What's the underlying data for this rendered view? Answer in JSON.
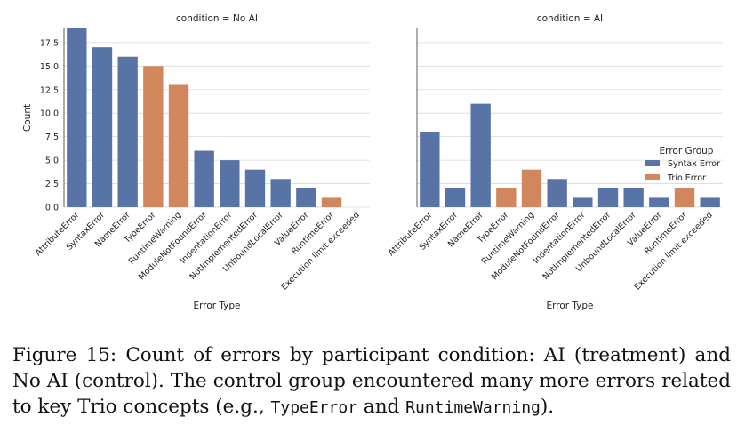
{
  "chart_data": [
    {
      "type": "bar",
      "title": "condition = No AI",
      "xlabel": "Error Type",
      "ylabel": "Count",
      "ylim": [
        0,
        19
      ],
      "yticks": [
        "0.0",
        "2.5",
        "5.0",
        "7.5",
        "10.0",
        "12.5",
        "15.0",
        "17.5"
      ],
      "categories": [
        "AttributeError",
        "SyntaxError",
        "NameError",
        "TypeError",
        "RuntimeWarning",
        "ModuleNotFoundError",
        "IndentationError",
        "NotImplementedError",
        "UnboundLocalError",
        "ValueError",
        "RuntimeError",
        "Execution limit exceeded"
      ],
      "values": [
        19,
        17,
        16,
        15,
        13,
        6,
        5,
        4,
        3,
        2,
        1,
        0
      ],
      "groups": [
        "Syntax Error",
        "Syntax Error",
        "Syntax Error",
        "Trio Error",
        "Trio Error",
        "Syntax Error",
        "Syntax Error",
        "Syntax Error",
        "Syntax Error",
        "Syntax Error",
        "Trio Error",
        "Syntax Error"
      ]
    },
    {
      "type": "bar",
      "title": "condition = AI",
      "xlabel": "Error Type",
      "ylabel": "",
      "ylim": [
        0,
        19
      ],
      "categories": [
        "AttributeError",
        "SyntaxError",
        "NameError",
        "TypeError",
        "RuntimeWarning",
        "ModuleNotFoundError",
        "IndentationError",
        "NotImplementedError",
        "UnboundLocalError",
        "ValueError",
        "RuntimeError",
        "Execution limit exceeded"
      ],
      "values": [
        8,
        2,
        11,
        2,
        4,
        3,
        1,
        2,
        2,
        1,
        2,
        1
      ],
      "groups": [
        "Syntax Error",
        "Syntax Error",
        "Syntax Error",
        "Trio Error",
        "Trio Error",
        "Syntax Error",
        "Syntax Error",
        "Syntax Error",
        "Syntax Error",
        "Syntax Error",
        "Trio Error",
        "Syntax Error"
      ]
    }
  ],
  "legend": {
    "title": "Error Group",
    "position": "right",
    "items": [
      {
        "label": "Syntax Error",
        "color": "#5874a6"
      },
      {
        "label": "Trio Error",
        "color": "#d1865e"
      }
    ]
  },
  "caption": {
    "prefix": "Figure 15: Count of errors by participant condition: AI (treatment) and No AI (control). The control group encountered many more errors related to key Trio concepts (e.g., ",
    "code1": "TypeError",
    "middle": " and ",
    "code2": "RuntimeWarning",
    "suffix": ")."
  }
}
